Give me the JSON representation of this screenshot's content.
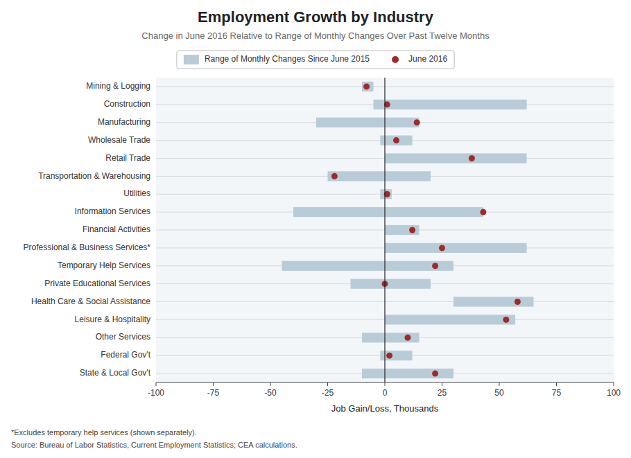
{
  "chart_data": {
    "type": "bar",
    "orientation": "horizontal",
    "title": "Employment Growth by Industry",
    "subtitle": "Change in June 2016 Relative to Range of Monthly Changes Over Past Twelve Months",
    "x_label": "Job Gain/Loss, Thousands",
    "annotations": [
      "*Excludes temporary help services (shown separately).",
      "Source: Bureau of Labor Statistics, Current Employment Statistics; CEA calculations."
    ],
    "categories": [
      "Mining & Logging",
      "Construction",
      "Manufacturing",
      "Wholesale Trade",
      "Retail Trade",
      "Transportation & Warehousing",
      "Utilities",
      "Information Services",
      "Financial Activities",
      "Professional & Business Services*",
      "Temporary Help Services",
      "Private Educational Services",
      "Health Care & Social Assistance",
      "Leisure & Hospitality",
      "Other Services",
      "Federal Gov't",
      "State & Local Gov't"
    ],
    "series": [
      {
        "name": "Range of Monthly Changes Since June 2015",
        "type": "range",
        "color": "#b8ccd8",
        "low": [
          -10,
          -5,
          -30,
          -2,
          0,
          -25,
          -2,
          -40,
          0,
          0,
          -45,
          -15,
          30,
          0,
          -10,
          -2,
          -10
        ],
        "high": [
          -5,
          62,
          15,
          12,
          62,
          20,
          3,
          43,
          15,
          62,
          30,
          20,
          65,
          57,
          15,
          12,
          30
        ]
      },
      {
        "name": "June 2016",
        "type": "scatter",
        "color": "#a0292a",
        "marker": "circle",
        "values": [
          -8,
          1,
          14,
          5,
          38,
          -22,
          1,
          43,
          12,
          25,
          22,
          0,
          58,
          53,
          10,
          2,
          22
        ]
      }
    ],
    "xlim": [
      -100,
      100
    ],
    "xticks": [
      -100,
      -75,
      -50,
      -25,
      0,
      25,
      50,
      75,
      100
    ],
    "grid": true,
    "legend": "top"
  }
}
